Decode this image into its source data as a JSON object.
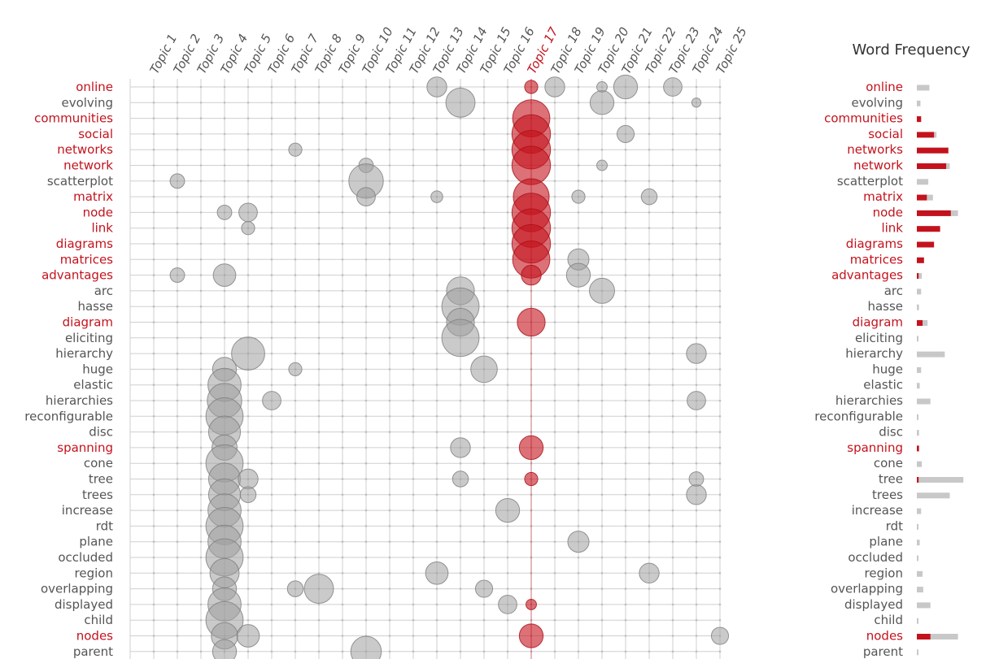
{
  "colors": {
    "highlight": "#c4121c",
    "grey_bubble": "#9e9e9e",
    "grey_bar": "#c8c8c8",
    "text_grey": "#555555",
    "grid": "#cfcfcf"
  },
  "chart_data": {
    "type": "bubble-matrix",
    "title": "",
    "highlighted_topic": "Topic 17",
    "topics": [
      "Topic 1",
      "Topic 2",
      "Topic 3",
      "Topic 4",
      "Topic 5",
      "Topic 6",
      "Topic 7",
      "Topic 8",
      "Topic 9",
      "Topic 10",
      "Topic 11",
      "Topic 12",
      "Topic 13",
      "Topic 14",
      "Topic 15",
      "Topic 16",
      "Topic 17",
      "Topic 18",
      "Topic 19",
      "Topic 20",
      "Topic 21",
      "Topic 22",
      "Topic 23",
      "Topic 24",
      "Topic 25"
    ],
    "terms": [
      {
        "term": "online",
        "highlight": true,
        "freq_total": 0.35,
        "freq_topic": 0
      },
      {
        "term": "evolving",
        "highlight": false,
        "freq_total": 0.1,
        "freq_topic": 0
      },
      {
        "term": "communities",
        "highlight": true,
        "freq_total": 0.12,
        "freq_topic": 0.12
      },
      {
        "term": "social",
        "highlight": true,
        "freq_total": 0.55,
        "freq_topic": 0.48
      },
      {
        "term": "networks",
        "highlight": true,
        "freq_total": 0.88,
        "freq_topic": 0.88
      },
      {
        "term": "network",
        "highlight": true,
        "freq_total": 0.92,
        "freq_topic": 0.82
      },
      {
        "term": "scatterplot",
        "highlight": false,
        "freq_total": 0.32,
        "freq_topic": 0
      },
      {
        "term": "matrix",
        "highlight": true,
        "freq_total": 0.45,
        "freq_topic": 0.28
      },
      {
        "term": "node",
        "highlight": true,
        "freq_total": 1.15,
        "freq_topic": 0.95
      },
      {
        "term": "link",
        "highlight": true,
        "freq_total": 0.65,
        "freq_topic": 0.65
      },
      {
        "term": "diagrams",
        "highlight": true,
        "freq_total": 0.48,
        "freq_topic": 0.48
      },
      {
        "term": "matrices",
        "highlight": true,
        "freq_total": 0.2,
        "freq_topic": 0.2
      },
      {
        "term": "advantages",
        "highlight": true,
        "freq_total": 0.14,
        "freq_topic": 0.05
      },
      {
        "term": "arc",
        "highlight": false,
        "freq_total": 0.12,
        "freq_topic": 0
      },
      {
        "term": "hasse",
        "highlight": false,
        "freq_total": 0.06,
        "freq_topic": 0
      },
      {
        "term": "diagram",
        "highlight": true,
        "freq_total": 0.3,
        "freq_topic": 0.16
      },
      {
        "term": "eliciting",
        "highlight": false,
        "freq_total": 0.03,
        "freq_topic": 0
      },
      {
        "term": "hierarchy",
        "highlight": false,
        "freq_total": 0.78,
        "freq_topic": 0
      },
      {
        "term": "huge",
        "highlight": false,
        "freq_total": 0.12,
        "freq_topic": 0
      },
      {
        "term": "elastic",
        "highlight": false,
        "freq_total": 0.08,
        "freq_topic": 0
      },
      {
        "term": "hierarchies",
        "highlight": false,
        "freq_total": 0.38,
        "freq_topic": 0
      },
      {
        "term": "reconfigurable",
        "highlight": false,
        "freq_total": 0.03,
        "freq_topic": 0
      },
      {
        "term": "disc",
        "highlight": false,
        "freq_total": 0.06,
        "freq_topic": 0
      },
      {
        "term": "spanning",
        "highlight": true,
        "freq_total": 0.06,
        "freq_topic": 0.06
      },
      {
        "term": "cone",
        "highlight": false,
        "freq_total": 0.14,
        "freq_topic": 0
      },
      {
        "term": "tree",
        "highlight": false,
        "freq_total": 1.3,
        "freq_topic": 0.05
      },
      {
        "term": "trees",
        "highlight": false,
        "freq_total": 0.92,
        "freq_topic": 0
      },
      {
        "term": "increase",
        "highlight": false,
        "freq_total": 0.12,
        "freq_topic": 0
      },
      {
        "term": "rdt",
        "highlight": false,
        "freq_total": 0.03,
        "freq_topic": 0
      },
      {
        "term": "plane",
        "highlight": false,
        "freq_total": 0.08,
        "freq_topic": 0
      },
      {
        "term": "occluded",
        "highlight": false,
        "freq_total": 0.03,
        "freq_topic": 0
      },
      {
        "term": "region",
        "highlight": false,
        "freq_total": 0.16,
        "freq_topic": 0
      },
      {
        "term": "overlapping",
        "highlight": false,
        "freq_total": 0.18,
        "freq_topic": 0
      },
      {
        "term": "displayed",
        "highlight": false,
        "freq_total": 0.38,
        "freq_topic": 0
      },
      {
        "term": "child",
        "highlight": false,
        "freq_total": 0.03,
        "freq_topic": 0
      },
      {
        "term": "nodes",
        "highlight": true,
        "freq_total": 1.15,
        "freq_topic": 0.38
      },
      {
        "term": "parent",
        "highlight": false,
        "freq_total": 0.03,
        "freq_topic": 0
      }
    ],
    "bubbles": [
      {
        "term": "online",
        "topic": "Topic 13",
        "value": 1.0
      },
      {
        "term": "online",
        "topic": "Topic 17",
        "value": 0.5
      },
      {
        "term": "online",
        "topic": "Topic 18",
        "value": 1.0
      },
      {
        "term": "online",
        "topic": "Topic 20",
        "value": 0.3
      },
      {
        "term": "online",
        "topic": "Topic 21",
        "value": 1.3
      },
      {
        "term": "online",
        "topic": "Topic 23",
        "value": 0.9
      },
      {
        "term": "evolving",
        "topic": "Topic 14",
        "value": 1.7
      },
      {
        "term": "evolving",
        "topic": "Topic 20",
        "value": 1.3
      },
      {
        "term": "evolving",
        "topic": "Topic 24",
        "value": 0.2
      },
      {
        "term": "communities",
        "topic": "Topic 17",
        "value": 2.3
      },
      {
        "term": "social",
        "topic": "Topic 17",
        "value": 2.4
      },
      {
        "term": "social",
        "topic": "Topic 21",
        "value": 0.8
      },
      {
        "term": "networks",
        "topic": "Topic 7",
        "value": 0.5
      },
      {
        "term": "networks",
        "topic": "Topic 17",
        "value": 2.4
      },
      {
        "term": "network",
        "topic": "Topic 10",
        "value": 0.6
      },
      {
        "term": "network",
        "topic": "Topic 17",
        "value": 2.4
      },
      {
        "term": "network",
        "topic": "Topic 20",
        "value": 0.3
      },
      {
        "term": "scatterplot",
        "topic": "Topic 2",
        "value": 0.6
      },
      {
        "term": "scatterplot",
        "topic": "Topic 10",
        "value": 2.1
      },
      {
        "term": "matrix",
        "topic": "Topic 10",
        "value": 0.9
      },
      {
        "term": "matrix",
        "topic": "Topic 13",
        "value": 0.4
      },
      {
        "term": "matrix",
        "topic": "Topic 17",
        "value": 2.2
      },
      {
        "term": "matrix",
        "topic": "Topic 19",
        "value": 0.5
      },
      {
        "term": "matrix",
        "topic": "Topic 22",
        "value": 0.7
      },
      {
        "term": "node",
        "topic": "Topic 4",
        "value": 0.6
      },
      {
        "term": "node",
        "topic": "Topic 5",
        "value": 0.9
      },
      {
        "term": "node",
        "topic": "Topic 17",
        "value": 2.4
      },
      {
        "term": "link",
        "topic": "Topic 5",
        "value": 0.5
      },
      {
        "term": "link",
        "topic": "Topic 17",
        "value": 2.4
      },
      {
        "term": "diagrams",
        "topic": "Topic 17",
        "value": 2.4
      },
      {
        "term": "matrices",
        "topic": "Topic 17",
        "value": 2.3
      },
      {
        "term": "matrices",
        "topic": "Topic 19",
        "value": 1.1
      },
      {
        "term": "advantages",
        "topic": "Topic 2",
        "value": 0.6
      },
      {
        "term": "advantages",
        "topic": "Topic 4",
        "value": 1.2
      },
      {
        "term": "advantages",
        "topic": "Topic 17",
        "value": 1.0
      },
      {
        "term": "advantages",
        "topic": "Topic 19",
        "value": 1.3
      },
      {
        "term": "arc",
        "topic": "Topic 14",
        "value": 1.6
      },
      {
        "term": "arc",
        "topic": "Topic 20",
        "value": 1.4
      },
      {
        "term": "hasse",
        "topic": "Topic 14",
        "value": 2.3
      },
      {
        "term": "diagram",
        "topic": "Topic 14",
        "value": 1.6
      },
      {
        "term": "diagram",
        "topic": "Topic 17",
        "value": 1.6
      },
      {
        "term": "eliciting",
        "topic": "Topic 14",
        "value": 2.3
      },
      {
        "term": "hierarchy",
        "topic": "Topic 5",
        "value": 2.0
      },
      {
        "term": "hierarchy",
        "topic": "Topic 24",
        "value": 1.0
      },
      {
        "term": "huge",
        "topic": "Topic 4",
        "value": 1.3
      },
      {
        "term": "huge",
        "topic": "Topic 7",
        "value": 0.5
      },
      {
        "term": "huge",
        "topic": "Topic 15",
        "value": 1.5
      },
      {
        "term": "elastic",
        "topic": "Topic 4",
        "value": 2.0
      },
      {
        "term": "hierarchies",
        "topic": "Topic 4",
        "value": 2.1
      },
      {
        "term": "hierarchies",
        "topic": "Topic 6",
        "value": 0.9
      },
      {
        "term": "hierarchies",
        "topic": "Topic 24",
        "value": 0.9
      },
      {
        "term": "reconfigurable",
        "topic": "Topic 4",
        "value": 2.3
      },
      {
        "term": "disc",
        "topic": "Topic 4",
        "value": 1.9
      },
      {
        "term": "spanning",
        "topic": "Topic 4",
        "value": 1.4
      },
      {
        "term": "spanning",
        "topic": "Topic 14",
        "value": 1.0
      },
      {
        "term": "spanning",
        "topic": "Topic 17",
        "value": 1.3
      },
      {
        "term": "cone",
        "topic": "Topic 4",
        "value": 2.3
      },
      {
        "term": "tree",
        "topic": "Topic 4",
        "value": 1.9
      },
      {
        "term": "tree",
        "topic": "Topic 5",
        "value": 1.0
      },
      {
        "term": "tree",
        "topic": "Topic 14",
        "value": 0.7
      },
      {
        "term": "tree",
        "topic": "Topic 17",
        "value": 0.5
      },
      {
        "term": "tree",
        "topic": "Topic 24",
        "value": 0.6
      },
      {
        "term": "trees",
        "topic": "Topic 4",
        "value": 1.9
      },
      {
        "term": "trees",
        "topic": "Topic 5",
        "value": 0.7
      },
      {
        "term": "trees",
        "topic": "Topic 24",
        "value": 1.0
      },
      {
        "term": "increase",
        "topic": "Topic 4",
        "value": 2.0
      },
      {
        "term": "increase",
        "topic": "Topic 16",
        "value": 1.3
      },
      {
        "term": "rdt",
        "topic": "Topic 4",
        "value": 2.3
      },
      {
        "term": "plane",
        "topic": "Topic 4",
        "value": 2.0
      },
      {
        "term": "plane",
        "topic": "Topic 19",
        "value": 1.1
      },
      {
        "term": "occluded",
        "topic": "Topic 4",
        "value": 2.3
      },
      {
        "term": "region",
        "topic": "Topic 4",
        "value": 1.7
      },
      {
        "term": "region",
        "topic": "Topic 13",
        "value": 1.2
      },
      {
        "term": "region",
        "topic": "Topic 22",
        "value": 1.0
      },
      {
        "term": "overlapping",
        "topic": "Topic 4",
        "value": 1.3
      },
      {
        "term": "overlapping",
        "topic": "Topic 7",
        "value": 0.7
      },
      {
        "term": "overlapping",
        "topic": "Topic 8",
        "value": 1.7
      },
      {
        "term": "overlapping",
        "topic": "Topic 15",
        "value": 0.8
      },
      {
        "term": "displayed",
        "topic": "Topic 4",
        "value": 2.0
      },
      {
        "term": "displayed",
        "topic": "Topic 16",
        "value": 0.9
      },
      {
        "term": "displayed",
        "topic": "Topic 17",
        "value": 0.3
      },
      {
        "term": "child",
        "topic": "Topic 4",
        "value": 2.3
      },
      {
        "term": "nodes",
        "topic": "Topic 4",
        "value": 1.5
      },
      {
        "term": "nodes",
        "topic": "Topic 5",
        "value": 1.2
      },
      {
        "term": "nodes",
        "topic": "Topic 17",
        "value": 1.3
      },
      {
        "term": "nodes",
        "topic": "Topic 25",
        "value": 0.8
      },
      {
        "term": "parent",
        "topic": "Topic 4",
        "value": 1.3
      },
      {
        "term": "parent",
        "topic": "Topic 10",
        "value": 1.8
      }
    ],
    "side_panel": {
      "title": "Word Frequency"
    }
  }
}
